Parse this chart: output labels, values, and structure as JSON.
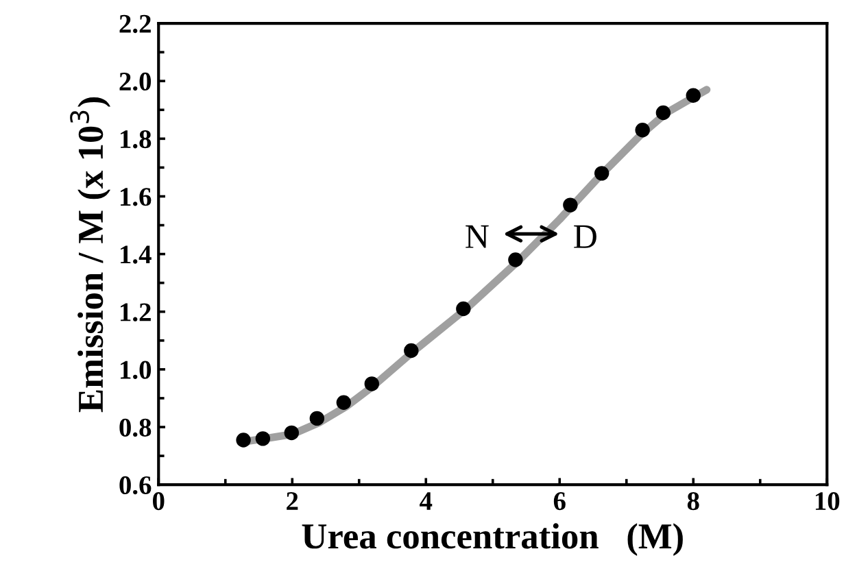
{
  "chart_data": {
    "type": "scatter",
    "xlabel": "Urea concentration   (M)",
    "ylabel": "Emission / M (x 10$^{3}$)",
    "xlim": [
      0,
      10
    ],
    "xticks": [
      0,
      2,
      4,
      6,
      8,
      10
    ],
    "ylim": [
      0.6,
      2.2
    ],
    "yticks": [
      {
        "value": 0.6,
        "label": "0.6"
      },
      {
        "value": 0.8,
        "label": "0.8"
      },
      {
        "value": 1.0,
        "label": "1.0"
      },
      {
        "value": 1.2,
        "label": "1.2"
      },
      {
        "value": 1.4,
        "label": "1.4"
      },
      {
        "value": 1.6,
        "label": "1.6"
      },
      {
        "value": 1.8,
        "label": "1.8"
      },
      {
        "value": 2.0,
        "label": "2.0"
      },
      {
        "value": 2.2,
        "label": "2.2"
      }
    ],
    "grid": false,
    "marker": "circle",
    "annotations": [
      "N",
      "D"
    ],
    "series": [
      {
        "type": "line",
        "color": "#a0a0a0",
        "marker": "none",
        "line_style": "solid",
        "x": [
          1.3,
          1.6,
          2.0,
          2.4,
          2.8,
          3.2,
          3.8,
          4.6,
          5.4,
          6.0,
          6.6,
          7.2,
          7.6,
          8.2
        ],
        "values": [
          0.75,
          0.76,
          0.775,
          0.815,
          0.87,
          0.94,
          1.06,
          1.21,
          1.38,
          1.52,
          1.67,
          1.81,
          1.89,
          1.97
        ]
      },
      {
        "color": "#000000",
        "x": [
          1.27,
          1.56,
          1.99,
          2.37,
          2.77,
          3.19,
          3.78,
          4.56,
          5.34,
          6.16,
          6.63,
          7.24,
          7.55,
          8.0
        ],
        "values": [
          0.755,
          0.76,
          0.78,
          0.83,
          0.885,
          0.95,
          1.065,
          1.21,
          1.38,
          1.57,
          1.68,
          1.83,
          1.89,
          1.95
        ]
      }
    ]
  }
}
